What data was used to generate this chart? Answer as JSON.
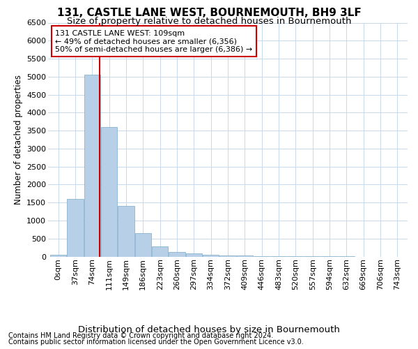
{
  "title": "131, CASTLE LANE WEST, BOURNEMOUTH, BH9 3LF",
  "subtitle": "Size of property relative to detached houses in Bournemouth",
  "xlabel": "Distribution of detached houses by size in Bournemouth",
  "ylabel": "Number of detached properties",
  "footnote1": "Contains HM Land Registry data © Crown copyright and database right 2024.",
  "footnote2": "Contains public sector information licensed under the Open Government Licence v3.0.",
  "bar_labels": [
    "0sqm",
    "37sqm",
    "74sqm",
    "111sqm",
    "149sqm",
    "186sqm",
    "223sqm",
    "260sqm",
    "297sqm",
    "334sqm",
    "372sqm",
    "409sqm",
    "446sqm",
    "483sqm",
    "520sqm",
    "557sqm",
    "594sqm",
    "632sqm",
    "669sqm",
    "706sqm",
    "743sqm"
  ],
  "bar_values": [
    50,
    1600,
    5050,
    3600,
    1400,
    650,
    280,
    130,
    80,
    50,
    30,
    20,
    10,
    5,
    3,
    2,
    1,
    1,
    0,
    0,
    0
  ],
  "bar_color": "#b8cfe8",
  "bar_edge_color": "#7aaac8",
  "grid_color": "#c8d8ec",
  "background_color": "#ffffff",
  "ylim": [
    0,
    6500
  ],
  "yticks": [
    0,
    500,
    1000,
    1500,
    2000,
    2500,
    3000,
    3500,
    4000,
    4500,
    5000,
    5500,
    6000,
    6500
  ],
  "property_size": 109,
  "property_label": "131 CASTLE LANE WEST: 109sqm",
  "annotation_line1": "← 49% of detached houses are smaller (6,356)",
  "annotation_line2": "50% of semi-detached houses are larger (6,386) →",
  "vline_color": "#cc0000",
  "annotation_box_color": "#cc0000",
  "title_fontsize": 11,
  "subtitle_fontsize": 9.5,
  "xlabel_fontsize": 9.5,
  "ylabel_fontsize": 8.5,
  "tick_fontsize": 8,
  "annotation_fontsize": 8,
  "footnote_fontsize": 7,
  "bin_width": 37
}
